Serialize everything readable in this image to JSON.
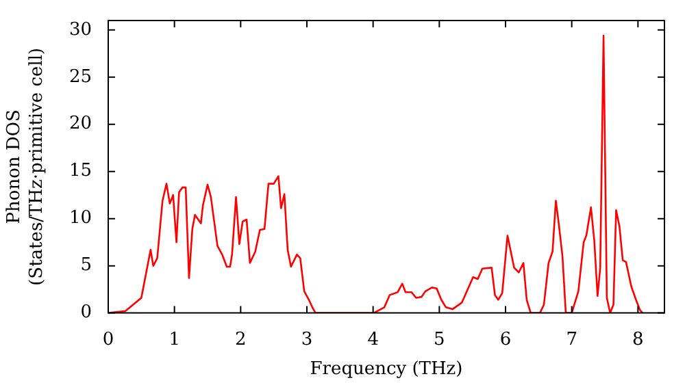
{
  "chart_data": {
    "type": "line",
    "xlabel": "Frequency (THz)",
    "ylabel": "Phonon DOS\n(States/THz·primitive cell)",
    "xlim": [
      0,
      8.4
    ],
    "ylim": [
      0,
      31
    ],
    "xticks": [
      0,
      1,
      2,
      3,
      4,
      5,
      6,
      7,
      8
    ],
    "yticks": [
      0,
      5,
      10,
      15,
      20,
      25,
      30
    ],
    "marker": "none",
    "line_style": "solid",
    "legend": false,
    "grid": false,
    "series": [
      {
        "color": "#ff0000",
        "x": [
          0,
          0.26,
          0.5,
          0.64,
          0.68,
          0.74,
          0.82,
          0.88,
          0.93,
          0.98,
          1.03,
          1.07,
          1.12,
          1.17,
          1.22,
          1.27,
          1.31,
          1.4,
          1.43,
          1.5,
          1.55,
          1.65,
          1.72,
          1.79,
          1.84,
          1.87,
          1.93,
          1.98,
          2.03,
          2.09,
          2.14,
          2.22,
          2.29,
          2.36,
          2.42,
          2.5,
          2.57,
          2.61,
          2.66,
          2.71,
          2.76,
          2.85,
          2.9,
          2.96,
          3.03,
          3.09,
          3.13,
          4.01,
          4.17,
          4.25,
          4.37,
          4.44,
          4.49,
          4.58,
          4.65,
          4.73,
          4.79,
          4.89,
          4.96,
          5.03,
          5.1,
          5.2,
          5.34,
          5.51,
          5.58,
          5.65,
          5.79,
          5.84,
          5.89,
          5.95,
          6.03,
          6.13,
          6.2,
          6.27,
          6.32,
          6.38,
          6.52,
          6.58,
          6.65,
          6.71,
          6.76,
          6.8,
          6.86,
          6.91,
          7.0,
          7.1,
          7.18,
          7.22,
          7.29,
          7.34,
          7.39,
          7.43,
          7.48,
          7.53,
          7.58,
          7.63,
          7.67,
          7.72,
          7.77,
          7.82,
          7.9,
          7.97,
          8.03,
          8.07
        ],
        "values": [
          0,
          0.2,
          1.6,
          6.7,
          5.0,
          5.8,
          11.9,
          13.7,
          11.6,
          12.5,
          7.5,
          12.8,
          13.3,
          13.3,
          3.7,
          8.9,
          10.4,
          9.5,
          11.4,
          13.6,
          12.3,
          7.1,
          6.2,
          4.9,
          4.9,
          6.2,
          12.3,
          7.3,
          9.7,
          9.9,
          5.3,
          6.5,
          8.8,
          8.9,
          13.7,
          13.7,
          14.5,
          11.1,
          12.6,
          6.7,
          4.9,
          6.2,
          5.8,
          2.3,
          1.4,
          0.5,
          0,
          0,
          0.6,
          1.9,
          2.2,
          3.1,
          2.2,
          2.2,
          1.6,
          1.7,
          2.3,
          2.7,
          2.6,
          1.4,
          0.6,
          0.4,
          1.1,
          3.8,
          3.6,
          4.7,
          4.8,
          1.9,
          1.4,
          2.1,
          8.2,
          4.8,
          4.3,
          5.3,
          1.4,
          0,
          0,
          0.9,
          5.3,
          6.5,
          11.9,
          9.7,
          6.0,
          0,
          0,
          2.3,
          7.5,
          8.2,
          11.2,
          7.7,
          1.8,
          4.8,
          29.4,
          1.6,
          0,
          0.9,
          10.9,
          9.2,
          5.6,
          5.4,
          2.8,
          1.4,
          0.3,
          0
        ]
      }
    ]
  }
}
